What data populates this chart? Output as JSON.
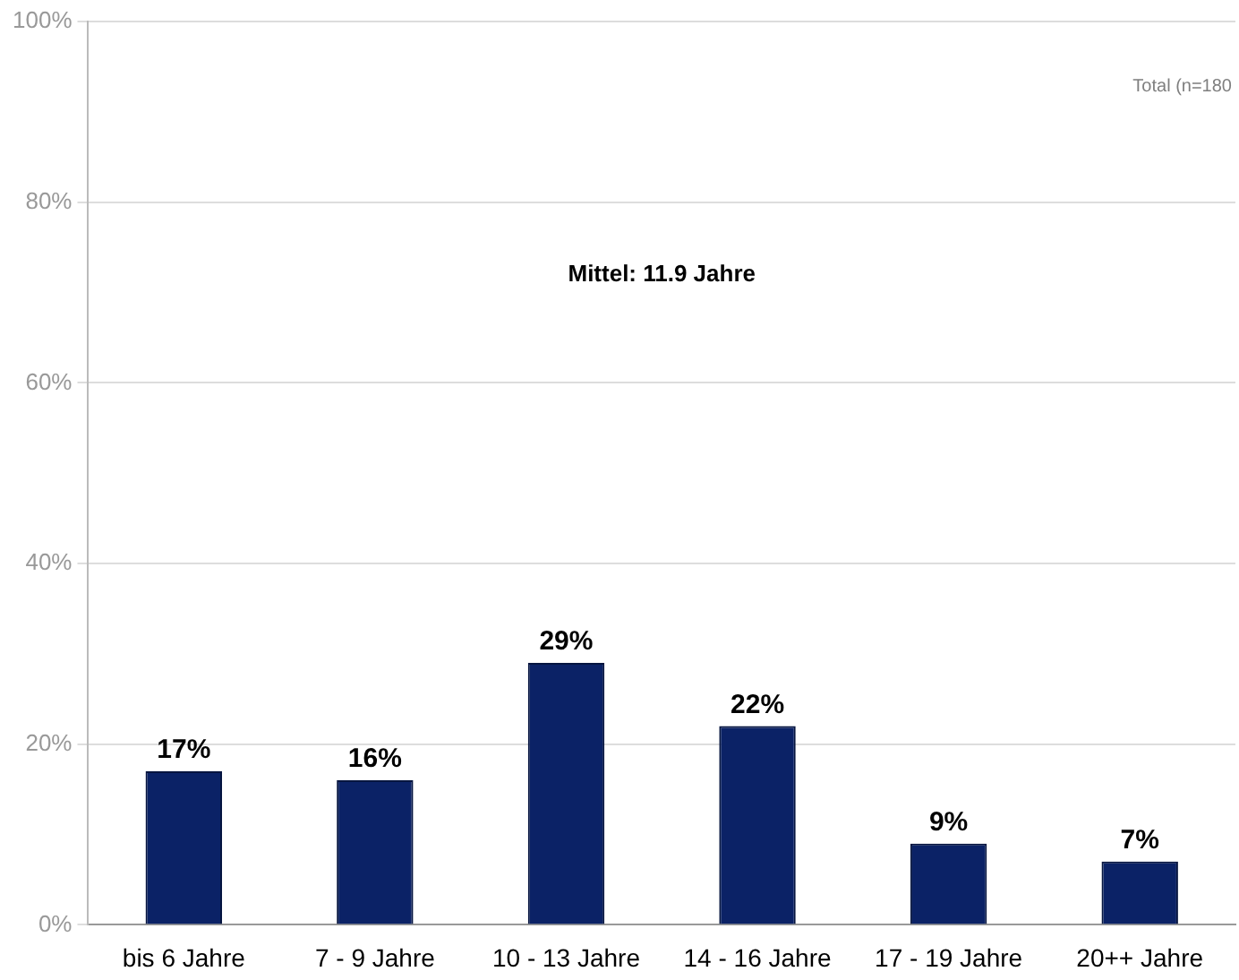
{
  "chart_data": {
    "type": "bar",
    "categories": [
      "bis 6 Jahre",
      "7 - 9 Jahre",
      "10 - 13 Jahre",
      "14 - 16 Jahre",
      "17 - 19 Jahre",
      "20++ Jahre"
    ],
    "values": [
      17,
      16,
      29,
      22,
      9,
      7
    ],
    "color": "#0b2266",
    "ylim": [
      0,
      100
    ],
    "yticks": [
      {
        "value": 0,
        "label": "0%"
      },
      {
        "value": 20,
        "label": "20%"
      },
      {
        "value": 40,
        "label": "40%"
      },
      {
        "value": 60,
        "label": "60%"
      },
      {
        "value": 80,
        "label": "80%"
      },
      {
        "value": 100,
        "label": "100%"
      }
    ],
    "grid": "y",
    "legend": false,
    "data_labels": true,
    "value_labels": [
      "17%",
      "16%",
      "29%",
      "22%",
      "9%",
      "7%"
    ],
    "annotations": [
      "Mittel: 11.9 Jahre",
      "Total (n=180"
    ]
  }
}
